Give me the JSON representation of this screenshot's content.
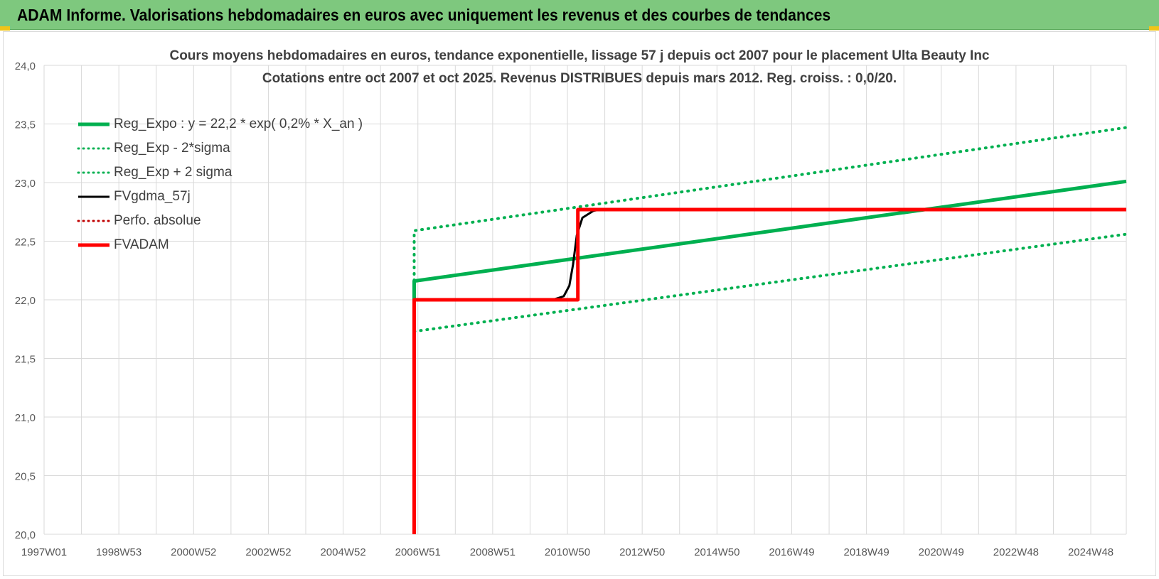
{
  "banner": {
    "title": "ADAM Informe. Valorisations hebdomadaires en euros avec uniquement les revenus et des courbes de tendances"
  },
  "colors": {
    "banner_bg": "#7ec87e",
    "green": "#00b050",
    "red": "#ff0000",
    "dark_red": "#c00000",
    "black": "#000000",
    "grid": "#d9d9d9"
  },
  "chart_data": {
    "type": "line",
    "title_line1": "Cours moyens hebdomadaires en euros, tendance exponentielle, lissage 57 j depuis oct 2007 pour le placement Ulta Beauty Inc",
    "title_line2": "Cotations entre oct 2007 et oct 2025.  Revenus DISTRIBUES depuis mars 2012. Reg. croiss. : 0,0/20.",
    "xlabel": "",
    "ylabel": "",
    "x_range": [
      1997.0,
      2025.95
    ],
    "ylim": [
      20.0,
      24.0
    ],
    "y_ticks": [
      "20,0",
      "20,5",
      "21,0",
      "21,5",
      "22,0",
      "22,5",
      "23,0",
      "23,5",
      "24,0"
    ],
    "x_ticks": [
      {
        "label": "1997W01",
        "x": 1997.0
      },
      {
        "label": "1998W53",
        "x": 1999.0
      },
      {
        "label": "2000W52",
        "x": 2001.0
      },
      {
        "label": "2002W52",
        "x": 2003.0
      },
      {
        "label": "2004W52",
        "x": 2005.0
      },
      {
        "label": "2006W51",
        "x": 2007.0
      },
      {
        "label": "2008W51",
        "x": 2009.0
      },
      {
        "label": "2010W50",
        "x": 2011.0
      },
      {
        "label": "2012W50",
        "x": 2013.0
      },
      {
        "label": "2014W50",
        "x": 2015.0
      },
      {
        "label": "2016W49",
        "x": 2017.0
      },
      {
        "label": "2018W49",
        "x": 2019.0
      },
      {
        "label": "2020W49",
        "x": 2021.0
      },
      {
        "label": "2022W48",
        "x": 2023.0
      },
      {
        "label": "2024W48",
        "x": 2025.0
      }
    ],
    "legend_position": "top-left",
    "grid": true,
    "series": [
      {
        "name": "Reg_Expo : y = 22,2 * exp( 0,2% *  X_an )",
        "color": "#00b050",
        "style": "solid",
        "points": [
          [
            2006.9,
            22.0
          ],
          [
            2006.9,
            22.16
          ],
          [
            2025.95,
            23.01
          ]
        ]
      },
      {
        "name": "Reg_Exp - 2*sigma",
        "color": "#00b050",
        "style": "dotted",
        "points": [
          [
            2006.9,
            21.73
          ],
          [
            2025.95,
            22.56
          ]
        ]
      },
      {
        "name": "Reg_Exp + 2 sigma",
        "color": "#00b050",
        "style": "dotted",
        "points": [
          [
            2006.9,
            22.0
          ],
          [
            2006.9,
            22.59
          ],
          [
            2025.95,
            23.47
          ]
        ]
      },
      {
        "name": "FVgdma_57j",
        "color": "#000000",
        "style": "solid",
        "points": [
          [
            2006.9,
            22.0
          ],
          [
            2010.6,
            22.0
          ],
          [
            2010.9,
            22.03
          ],
          [
            2011.05,
            22.12
          ],
          [
            2011.15,
            22.3
          ],
          [
            2011.25,
            22.55
          ],
          [
            2011.4,
            22.7
          ],
          [
            2011.7,
            22.76
          ],
          [
            2011.9,
            22.77
          ]
        ]
      },
      {
        "name": "Perfo. absolue",
        "color": "#c00000",
        "style": "dotted",
        "points": []
      },
      {
        "name": "FVADAM",
        "color": "#ff0000",
        "style": "solid",
        "points": [
          [
            2006.9,
            20.0
          ],
          [
            2006.9,
            22.0
          ],
          [
            2011.28,
            22.0
          ],
          [
            2011.28,
            22.77
          ],
          [
            2025.95,
            22.77
          ]
        ]
      }
    ]
  }
}
